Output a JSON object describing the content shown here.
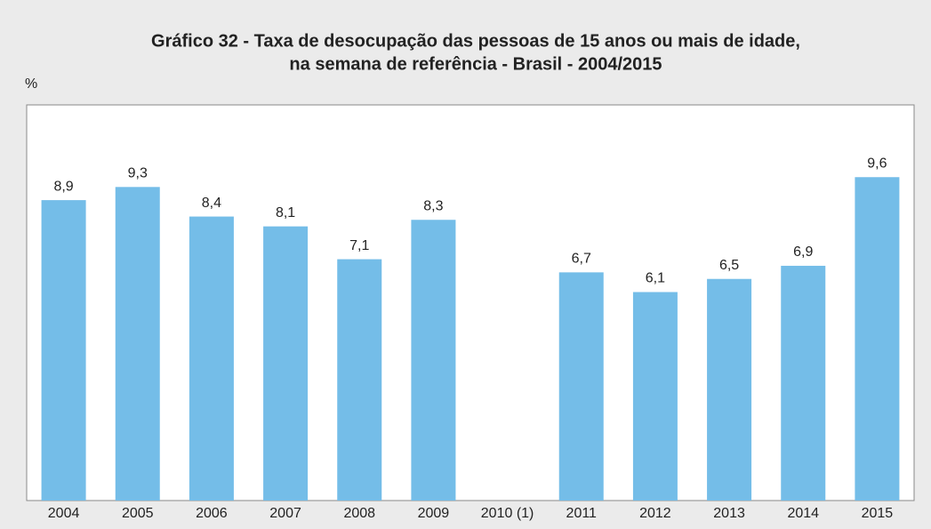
{
  "chart_data": {
    "type": "bar",
    "title": [
      "Gráfico 32 - Taxa de desocupação das pessoas de 15 anos ou mais de idade,",
      "na semana de referência - Brasil - 2004/2015"
    ],
    "y_label": "%",
    "categories": [
      "2004",
      "2005",
      "2006",
      "2007",
      "2008",
      "2009",
      "2010 (1)",
      "2011",
      "2012",
      "2013",
      "2014",
      "2015"
    ],
    "values": [
      8.9,
      9.3,
      8.4,
      8.1,
      7.1,
      8.3,
      null,
      6.7,
      6.1,
      6.5,
      6.9,
      9.6
    ],
    "value_labels": [
      "8,9",
      "9,3",
      "8,4",
      "8,1",
      "7,1",
      "8,3",
      null,
      "6,7",
      "6,1",
      "6,5",
      "6,9",
      "9,6"
    ],
    "color": "#74bde8",
    "ylim": [
      -0.25,
      11.8
    ]
  }
}
